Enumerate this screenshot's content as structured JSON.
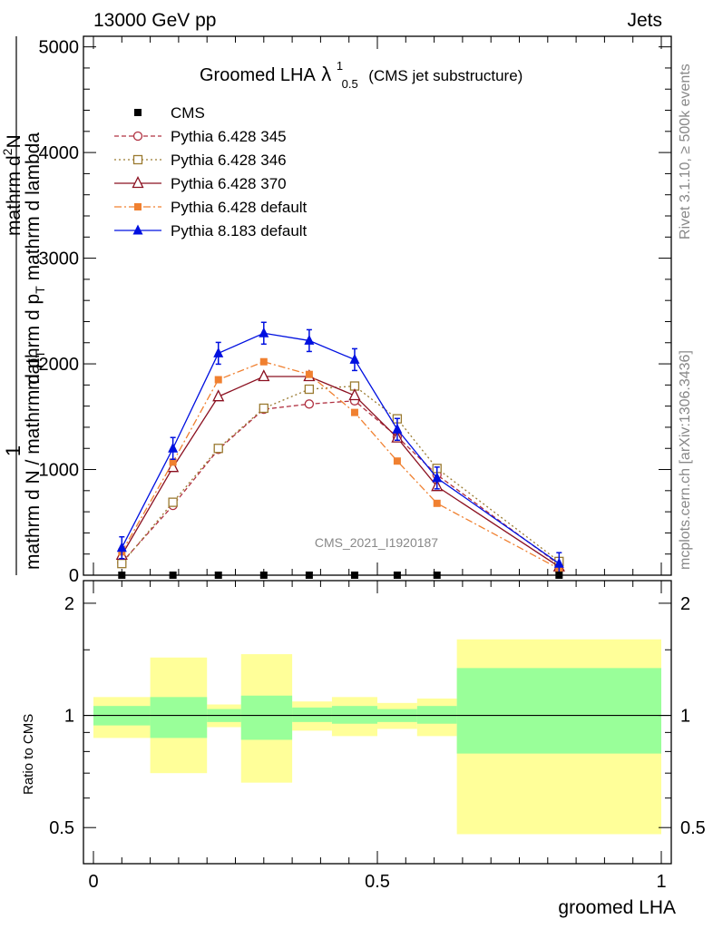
{
  "header": {
    "energy_label": "13000 GeV pp",
    "category": "Jets"
  },
  "chart_data": {
    "type": "line",
    "title_main": "Groomed LHA",
    "title_symbol": "λ",
    "title_sup": "1",
    "title_sub": "0.5",
    "title_note": "(CMS jet substructure)",
    "watermark": "CMS_2021_I1920187",
    "side_label_top": "Rivet 3.1.10, ≥ 500k events",
    "side_label_bottom": "mcplots.cern.ch [arXiv:1306.3436]",
    "ylabel_numerator": "1",
    "ylabel_denominator": "mathrm d N / mathrm d p_T",
    "ylabel_right": "mathrm d^2 N / mathrm d p_T mathrm d lambda",
    "ylabel_right_parts": [
      "mathrm d",
      "2",
      "N"
    ],
    "ylabel_right_sub": [
      "mathrm d p",
      "T",
      " mathrm d lambda"
    ],
    "ylabel_denominator_parts": [
      "mathrm d N / mathrm d p",
      "T"
    ],
    "xlabel": "groomed LHA",
    "ratio_ylabel": "Ratio to CMS",
    "x_ticks": [
      "0",
      "0.5",
      "1"
    ],
    "y_ticks": [
      "0",
      "1000",
      "2000",
      "3000",
      "4000",
      "5000"
    ],
    "ratio_ticks": [
      "0.5",
      "1",
      "2"
    ],
    "xlim": [
      0,
      1
    ],
    "ylim": [
      0,
      5100
    ],
    "ratio_ylim": [
      0.4,
      2.3
    ],
    "bin_edges": [
      0.0,
      0.1,
      0.2,
      0.26,
      0.35,
      0.42,
      0.5,
      0.57,
      0.64,
      1.0
    ],
    "x": [
      0.05,
      0.14,
      0.22,
      0.3,
      0.38,
      0.46,
      0.535,
      0.605,
      0.82
    ],
    "cms": [
      0,
      0,
      0,
      0,
      0,
      0,
      0,
      0,
      0
    ],
    "ratio_band_inner": [
      [
        0.94,
        1.06
      ],
      [
        0.87,
        1.12
      ],
      [
        0.96,
        1.04
      ],
      [
        0.86,
        1.13
      ],
      [
        0.96,
        1.05
      ],
      [
        0.95,
        1.06
      ],
      [
        0.96,
        1.04
      ],
      [
        0.95,
        1.06
      ],
      [
        0.79,
        1.34
      ]
    ],
    "ratio_band_outer": [
      [
        0.87,
        1.12
      ],
      [
        0.7,
        1.43
      ],
      [
        0.93,
        1.07
      ],
      [
        0.66,
        1.46
      ],
      [
        0.91,
        1.09
      ],
      [
        0.88,
        1.12
      ],
      [
        0.92,
        1.08
      ],
      [
        0.88,
        1.11
      ],
      [
        0.48,
        1.6
      ]
    ],
    "series": [
      {
        "name": "Pythia 6.428 345",
        "color": "#b03040",
        "dash": "5,3",
        "marker": "circle-open",
        "values": [
          120,
          660,
          1190,
          1570,
          1620,
          1650,
          1310,
          950,
          100
        ]
      },
      {
        "name": "Pythia 6.428 346",
        "color": "#9a7a30",
        "dash": "2,3",
        "marker": "square-open",
        "values": [
          110,
          690,
          1200,
          1580,
          1760,
          1790,
          1480,
          1010,
          130
        ]
      },
      {
        "name": "Pythia 6.428 370",
        "color": "#8b1020",
        "dash": "",
        "marker": "triangle-open",
        "values": [
          190,
          1020,
          1690,
          1880,
          1880,
          1700,
          1300,
          840,
          80
        ]
      },
      {
        "name": "Pythia 6.428 default",
        "color": "#f08030",
        "dash": "8,3,2,3",
        "marker": "square-filled",
        "values": [
          220,
          1070,
          1850,
          2020,
          1900,
          1540,
          1080,
          680,
          60
        ]
      },
      {
        "name": "Pythia 8.183 default",
        "color": "#0010e0",
        "dash": "",
        "marker": "triangle-filled",
        "values": [
          260,
          1200,
          2100,
          2290,
          2220,
          2040,
          1380,
          920,
          110
        ]
      }
    ],
    "legend_cms": "CMS",
    "legend_position": "top-left"
  }
}
